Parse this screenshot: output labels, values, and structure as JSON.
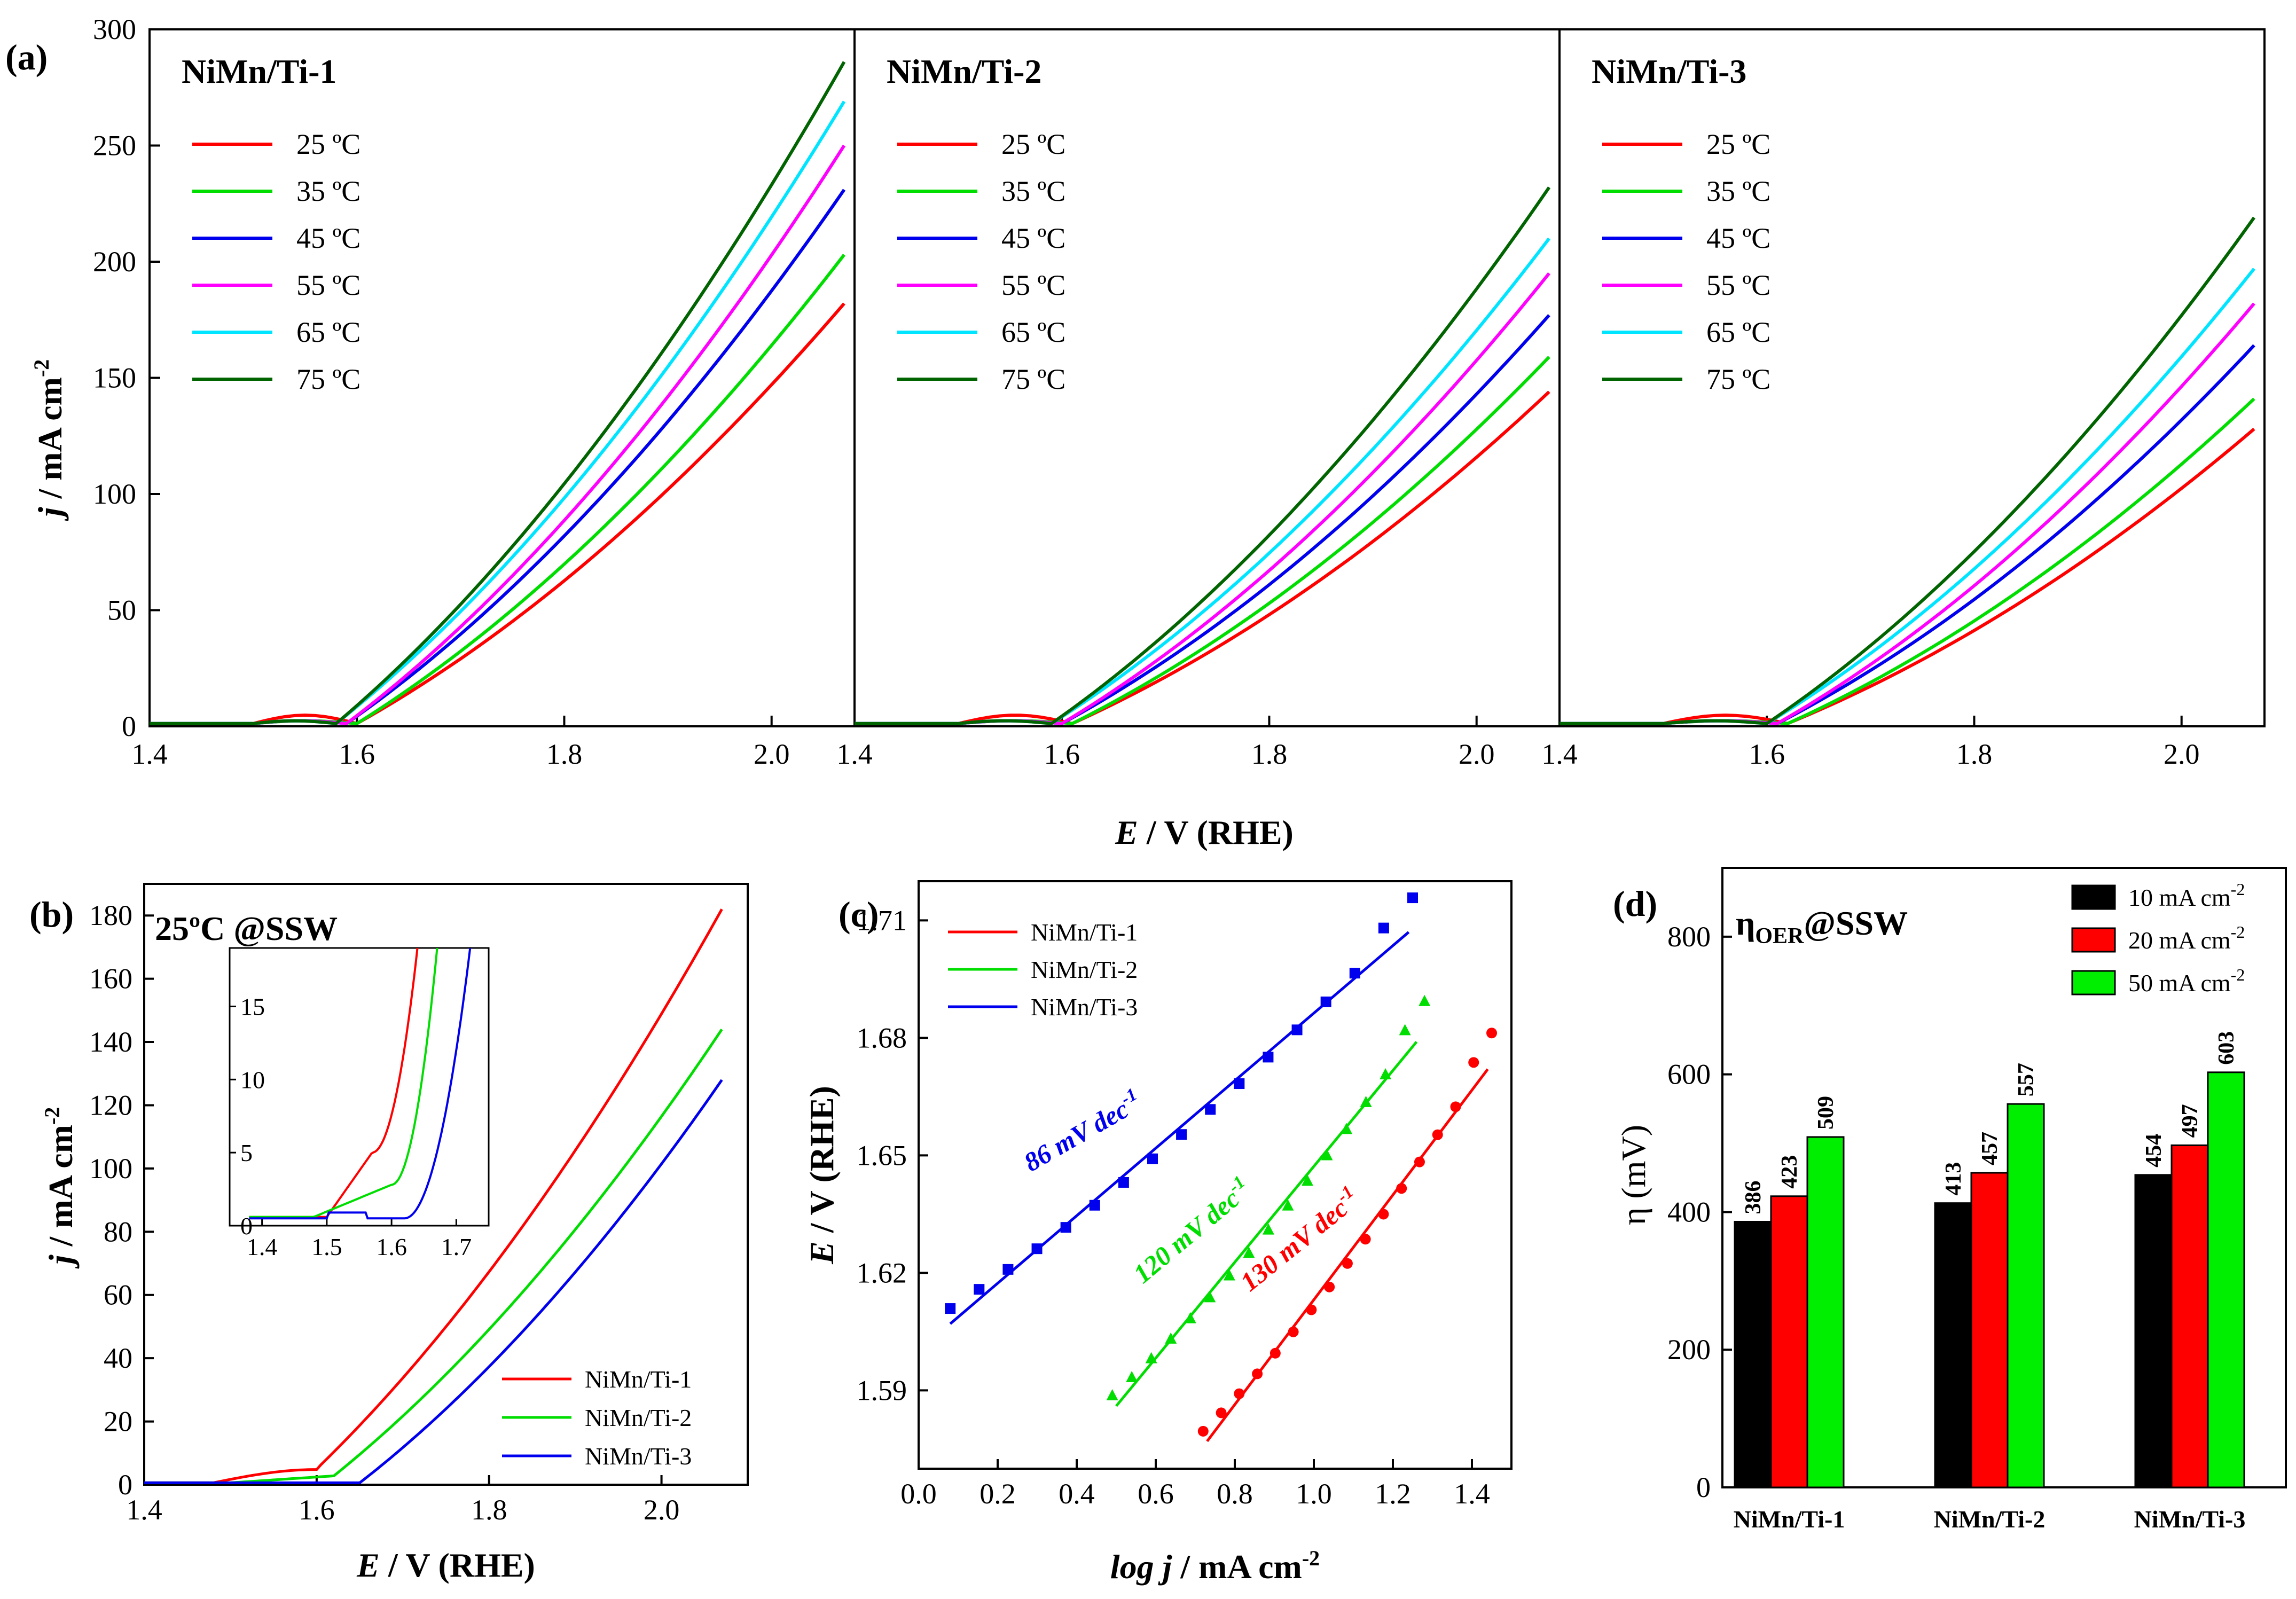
{
  "panel_a": {
    "letter": "(a)",
    "xlabel_italic": "E",
    "xlabel_rest": " / V (RHE)",
    "ylabel_italic": "j",
    "ylabel_rest": " / mA cm",
    "ylabel_sup": "-2",
    "subpanels": [
      {
        "title": "NiMn/Ti-1",
        "slope": 0.84,
        "end_mult": 1.0
      },
      {
        "title": "NiMn/Ti-2",
        "slope": 0.66,
        "end_mult": 0.8
      },
      {
        "title": "NiMn/Ti-3",
        "slope": 0.58,
        "end_mult": 0.77
      }
    ],
    "temps": [
      {
        "label": "25 ºC",
        "color": "#ff0000"
      },
      {
        "label": "35 ºC",
        "color": "#00dd00"
      },
      {
        "label": "45 ºC",
        "color": "#0000ee"
      },
      {
        "label": "55 ºC",
        "color": "#ff00ff"
      },
      {
        "label": "65 ºC",
        "color": "#00e5ff"
      },
      {
        "label": "75 ºC",
        "color": "#006400"
      }
    ]
  },
  "chart_data": [
    {
      "type": "line",
      "panel": "a",
      "series_labels": [
        "25 ºC",
        "35 ºC",
        "45 ºC",
        "55 ºC",
        "65 ºC",
        "75 ºC"
      ],
      "xlim": [
        1.4,
        2.08
      ],
      "ylim": [
        0,
        300
      ],
      "xticks": [
        1.4,
        1.6,
        1.8,
        2.0
      ],
      "yticks": [
        0,
        50,
        100,
        150,
        200,
        250,
        300
      ],
      "end_values_at_2.07V": {
        "NiMn/Ti-1": [
          182,
          203,
          231,
          250,
          269,
          286
        ],
        "NiMn/Ti-2": [
          144,
          159,
          177,
          195,
          210,
          232
        ],
        "NiMn/Ti-3": [
          128,
          141,
          164,
          182,
          197,
          219
        ]
      },
      "onset_V": [
        1.6,
        1.6,
        1.59,
        1.59,
        1.58,
        1.58
      ]
    },
    {
      "type": "line",
      "panel": "b",
      "ylim": [
        0,
        190
      ],
      "xlim": [
        1.4,
        2.1
      ],
      "xticks": [
        1.4,
        1.6,
        1.8,
        2.0
      ],
      "yticks": [
        0,
        20,
        40,
        60,
        80,
        100,
        120,
        140,
        160,
        180
      ],
      "series": [
        {
          "name": "NiMn/Ti-1",
          "color": "#ff0000",
          "end_value": 182,
          "onset_V": 1.6
        },
        {
          "name": "NiMn/Ti-2",
          "color": "#00dd00",
          "end_value": 144,
          "onset_V": 1.62
        },
        {
          "name": "NiMn/Ti-3",
          "color": "#0000ee",
          "end_value": 128,
          "onset_V": 1.65
        }
      ],
      "inset": {
        "xlim": [
          1.35,
          1.75
        ],
        "ylim": [
          0,
          19
        ],
        "xticks": [
          1.4,
          1.5,
          1.6,
          1.7
        ],
        "yticks": [
          0,
          5,
          10,
          15
        ]
      }
    },
    {
      "type": "scatter",
      "panel": "c",
      "xlim": [
        0.0,
        1.5
      ],
      "ylim": [
        1.57,
        1.72
      ],
      "xticks": [
        0.0,
        0.2,
        0.4,
        0.6,
        0.8,
        1.0,
        1.2,
        1.4
      ],
      "yticks": [
        1.59,
        1.62,
        1.65,
        1.68,
        1.71
      ],
      "series": [
        {
          "name": "NiMn/Ti-1",
          "color": "#ff0000",
          "marker": "circle",
          "tafel": "130 mV dec",
          "x_range": [
            0.72,
            1.45
          ],
          "fit": [
            [
              0.73,
              1.577
            ],
            [
              1.44,
              1.672
            ]
          ]
        },
        {
          "name": "NiMn/Ti-2",
          "color": "#00dd00",
          "marker": "triangle",
          "tafel": "120 mV dec",
          "x_range": [
            0.49,
            1.28
          ],
          "fit": [
            [
              0.5,
              1.586
            ],
            [
              1.26,
              1.679
            ]
          ]
        },
        {
          "name": "NiMn/Ti-3",
          "color": "#0000ee",
          "marker": "square",
          "tafel": "86 mV dec",
          "x_range": [
            0.08,
            1.25
          ],
          "fit": [
            [
              0.08,
              1.607
            ],
            [
              1.24,
              1.707
            ]
          ]
        }
      ]
    },
    {
      "type": "bar",
      "panel": "d",
      "categories": [
        "NiMn/Ti-1",
        "NiMn/Ti-2",
        "NiMn/Ti-3"
      ],
      "ylim": [
        0,
        900
      ],
      "yticks": [
        0,
        200,
        400,
        600,
        800
      ],
      "series": [
        {
          "name": "10 mA cm",
          "color": "#000000",
          "values": [
            386,
            413,
            454
          ]
        },
        {
          "name": "20 mA cm",
          "color": "#ff0000",
          "values": [
            423,
            457,
            497
          ]
        },
        {
          "name": "50 mA cm",
          "color": "#00ee00",
          "values": [
            509,
            557,
            603
          ]
        }
      ]
    }
  ],
  "panel_b": {
    "letter": "(b)",
    "title": "25ºC @SSW",
    "xlabel_italic": "E",
    "xlabel_rest": " / V (RHE)",
    "ylabel_italic": "j",
    "ylabel_rest": " / mA cm",
    "ylabel_sup": "-2"
  },
  "panel_c": {
    "letter": "(c)",
    "xlabel_italic": "log j",
    "xlabel_rest": " / mA cm",
    "xlabel_sup": "-2",
    "ylabel_italic": "E",
    "ylabel_rest": " / V (RHE)",
    "tafel_sup": "-1"
  },
  "panel_d": {
    "letter": "(d)",
    "title_main": "η",
    "title_sub": "OER",
    "title_rest": "@SSW",
    "ylabel": "η (mV)",
    "legend_sup": "-2"
  }
}
